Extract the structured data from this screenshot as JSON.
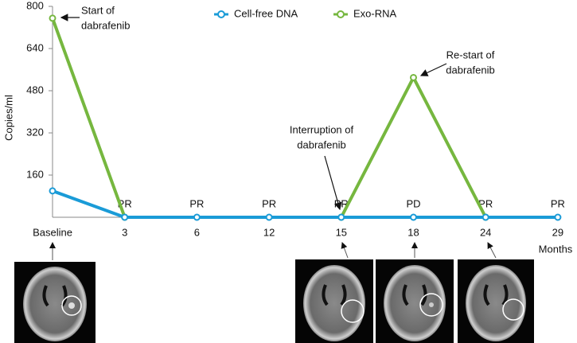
{
  "chart_data": {
    "type": "line",
    "y_label": "Copies/ml",
    "x_label": "Months",
    "categories": [
      "Baseline",
      "3",
      "6",
      "12",
      "15",
      "18",
      "24",
      "29"
    ],
    "series": [
      {
        "name": "Cell-free DNA",
        "color": "#1a9bd7",
        "values": [
          100,
          0,
          0,
          0,
          0,
          0,
          0,
          0
        ]
      },
      {
        "name": "Exo-RNA",
        "color": "#76b73f",
        "values": [
          755,
          0,
          null,
          null,
          0,
          530,
          0,
          null
        ]
      }
    ],
    "response_labels": [
      null,
      "PR",
      "PR",
      "PR",
      "PR",
      "PD",
      "PR",
      "PR"
    ],
    "ylim": [
      0,
      800
    ],
    "yticks": [
      160,
      320,
      480,
      640,
      800
    ],
    "annotations": [
      {
        "text": [
          "Start of",
          "dabrafenib"
        ]
      },
      {
        "text": [
          "Re-start of",
          "dabrafenib"
        ]
      },
      {
        "text": [
          "Interruption of",
          "dabrafenib"
        ]
      }
    ]
  }
}
